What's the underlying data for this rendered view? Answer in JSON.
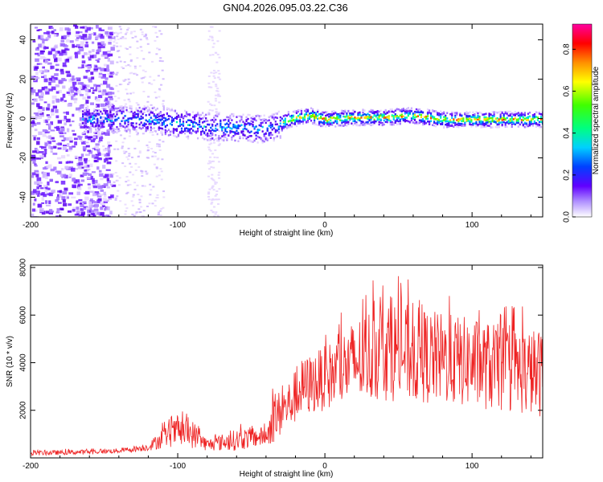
{
  "title": "GN04.2026.095.03.22.C36",
  "colors": {
    "snr_line": "#ee2222",
    "axis": "#000000"
  },
  "chart_data": [
    {
      "type": "heatmap",
      "name": "spectrogram",
      "xlabel": "Height of straight line (km)",
      "ylabel": "Frequency (Hz)",
      "xlim": [
        -200,
        148
      ],
      "ylim": [
        -50,
        48
      ],
      "xticks": [
        -200,
        -100,
        0,
        100
      ],
      "yticks": [
        -40,
        -20,
        0,
        20,
        40
      ],
      "colorbar": {
        "label": "Normalized spectral amplitude",
        "range": [
          0,
          0.92
        ],
        "ticks": [
          "0.0",
          "0.2",
          "0.4",
          "0.6",
          "0.8"
        ],
        "tick_values": [
          0,
          0.2,
          0.4,
          0.6,
          0.8
        ]
      },
      "ridge": {
        "description": "dominant frequency band near 0 Hz",
        "x": [
          -165,
          -140,
          -120,
          -100,
          -80,
          -60,
          -45,
          -35,
          -25,
          -10,
          0,
          20,
          40,
          60,
          80,
          100,
          120,
          148
        ],
        "y": [
          0,
          0,
          0,
          -2,
          -4,
          -4,
          -5,
          -4,
          0,
          2,
          0,
          1,
          1,
          2,
          0,
          0,
          0,
          0
        ]
      }
    },
    {
      "type": "line",
      "name": "snr",
      "xlabel": "Height of straight line (km)",
      "ylabel": "SNR (10 * v/v)",
      "xlim": [
        -200,
        148
      ],
      "ylim": [
        0,
        8100
      ],
      "xticks": [
        -200,
        -100,
        0,
        100
      ],
      "yticks": [
        2000,
        4000,
        6000,
        8000
      ],
      "envelope": {
        "x": [
          -200,
          -160,
          -140,
          -120,
          -110,
          -100,
          -90,
          -80,
          -70,
          -60,
          -50,
          -40,
          -35,
          -25,
          -15,
          0,
          20,
          40,
          60,
          80,
          100,
          120,
          148
        ],
        "low": [
          100,
          150,
          200,
          300,
          400,
          500,
          400,
          300,
          300,
          300,
          400,
          500,
          600,
          1200,
          1700,
          2000,
          2200,
          2400,
          2300,
          2200,
          2100,
          1900,
          1700
        ],
        "high": [
          300,
          350,
          400,
          600,
          1300,
          1700,
          1600,
          800,
          1000,
          1200,
          1300,
          1300,
          2600,
          3200,
          4200,
          4700,
          5800,
          6800,
          6400,
          6100,
          5900,
          5600,
          5400
        ]
      }
    }
  ]
}
